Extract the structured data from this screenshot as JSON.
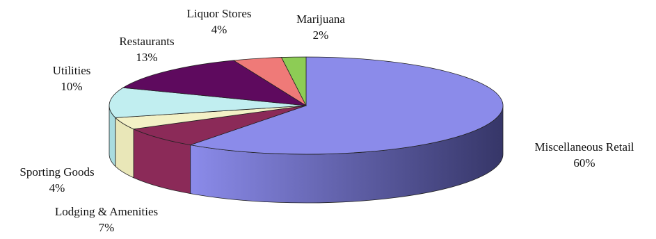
{
  "chart_data": {
    "type": "pie",
    "style": "3d-exploded-none",
    "start_angle_deg": 90,
    "direction": "clockwise",
    "slices": [
      {
        "label": "Miscellaneous Retail",
        "value": 60,
        "value_label": "60%",
        "color": "#8b8bea",
        "side_dark": "#3a3a6a"
      },
      {
        "label": "Lodging & Amenities",
        "value": 7,
        "value_label": "7%",
        "color": "#8b2a58",
        "side_dark": "#8b2a58"
      },
      {
        "label": "Sporting Goods",
        "value": 4,
        "value_label": "4%",
        "color": "#f3f1c6",
        "side_dark": "#e9e7b8"
      },
      {
        "label": "Utilities",
        "value": 10,
        "value_label": "10%",
        "color": "#c1eef0",
        "side_dark": "#a9dcdf"
      },
      {
        "label": "Restaurants",
        "value": 13,
        "value_label": "13%",
        "color": "#5e0a5e",
        "side_dark": "#4a084a"
      },
      {
        "label": "Liquor Stores",
        "value": 4,
        "value_label": "4%",
        "color": "#ef7a78",
        "side_dark": "#d8605f"
      },
      {
        "label": "Marijuana",
        "value": 2,
        "value_label": "2%",
        "color": "#8dcc55",
        "side_dark": "#73b13f"
      }
    ],
    "legend": "none"
  }
}
